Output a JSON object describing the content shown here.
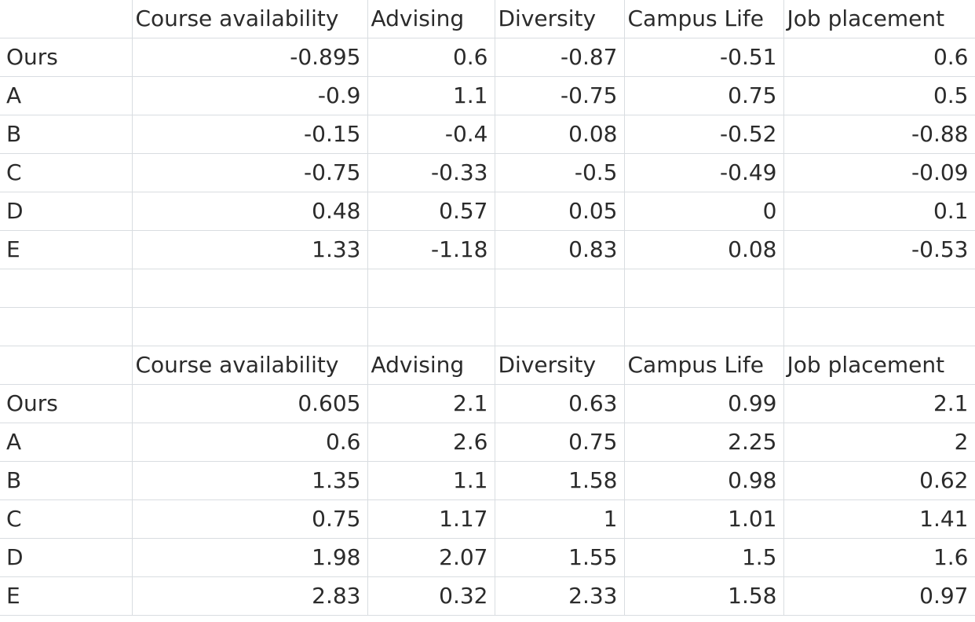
{
  "table1": {
    "headers": [
      "",
      "Course availability",
      "Advising",
      "Diversity",
      "Campus Life",
      "Job placement"
    ],
    "rows": [
      [
        "Ours",
        "-0.895",
        "0.6",
        "-0.87",
        "-0.51",
        "0.6"
      ],
      [
        "A",
        "-0.9",
        "1.1",
        "-0.75",
        "0.75",
        "0.5"
      ],
      [
        "B",
        "-0.15",
        "-0.4",
        "0.08",
        "-0.52",
        "-0.88"
      ],
      [
        "C",
        "-0.75",
        "-0.33",
        "-0.5",
        "-0.49",
        "-0.09"
      ],
      [
        "D",
        "0.48",
        "0.57",
        "0.05",
        "0",
        "0.1"
      ],
      [
        "E",
        "1.33",
        "-1.18",
        "0.83",
        "0.08",
        "-0.53"
      ]
    ]
  },
  "table2": {
    "headers": [
      "",
      "Course availability",
      "Advising",
      "Diversity",
      "Campus Life",
      "Job placement"
    ],
    "rows": [
      [
        "Ours",
        "0.605",
        "2.1",
        "0.63",
        "0.99",
        "2.1"
      ],
      [
        "A",
        "0.6",
        "2.6",
        "0.75",
        "2.25",
        "2"
      ],
      [
        "B",
        "1.35",
        "1.1",
        "1.58",
        "0.98",
        "0.62"
      ],
      [
        "C",
        "0.75",
        "1.17",
        "1",
        "1.01",
        "1.41"
      ],
      [
        "D",
        "1.98",
        "2.07",
        "1.55",
        "1.5",
        "1.6"
      ],
      [
        "E",
        "2.83",
        "0.32",
        "2.33",
        "1.58",
        "0.97"
      ]
    ]
  },
  "colors": {
    "gridline": "#d9dde1",
    "text": "#2b2b2b",
    "background": "#ffffff"
  }
}
